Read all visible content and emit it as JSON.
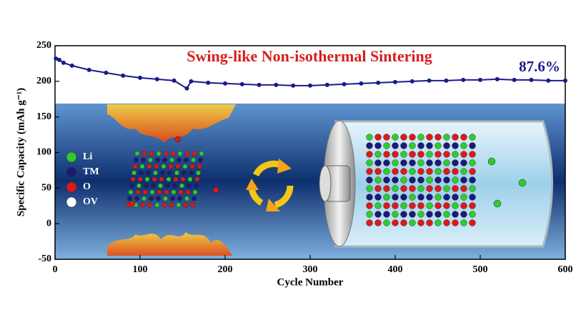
{
  "chart_data": {
    "type": "line",
    "title": "Swing-like Non-isothermal Sintering",
    "annotation": "87.6%",
    "x_label": "Cycle Number",
    "y_label": "Specific Capacity (mAh g⁻¹)",
    "x": [
      1,
      5,
      10,
      20,
      40,
      60,
      80,
      100,
      120,
      140,
      155,
      160,
      180,
      200,
      220,
      240,
      260,
      280,
      300,
      320,
      340,
      360,
      380,
      400,
      420,
      440,
      460,
      480,
      500,
      520,
      540,
      560,
      580,
      600
    ],
    "series": [
      {
        "color": "#1a1a8c",
        "values": [
          232,
          230,
          226,
          222,
          216,
          212,
          208,
          205,
          203,
          201,
          190,
          200,
          198,
          197,
          196,
          195,
          195,
          194,
          194,
          195,
          196,
          197,
          198,
          199,
          200,
          201,
          201,
          202,
          202,
          203,
          202,
          202,
          201,
          201
        ]
      }
    ],
    "xlim": [
      0,
      600
    ],
    "xticks": [
      0,
      100,
      200,
      300,
      400,
      500,
      600
    ],
    "ylim": [
      -50,
      250
    ],
    "yticks": [
      -50,
      0,
      50,
      100,
      150,
      200,
      250
    ],
    "title_color": "#d81e1e",
    "atom_legend": [
      {
        "name": "Li",
        "color": "#2ecc2e"
      },
      {
        "name": "TM",
        "color": "#1a1a7a"
      },
      {
        "name": "O",
        "color": "#e01818"
      },
      {
        "name": "OV",
        "color": "#ffffff"
      }
    ]
  }
}
